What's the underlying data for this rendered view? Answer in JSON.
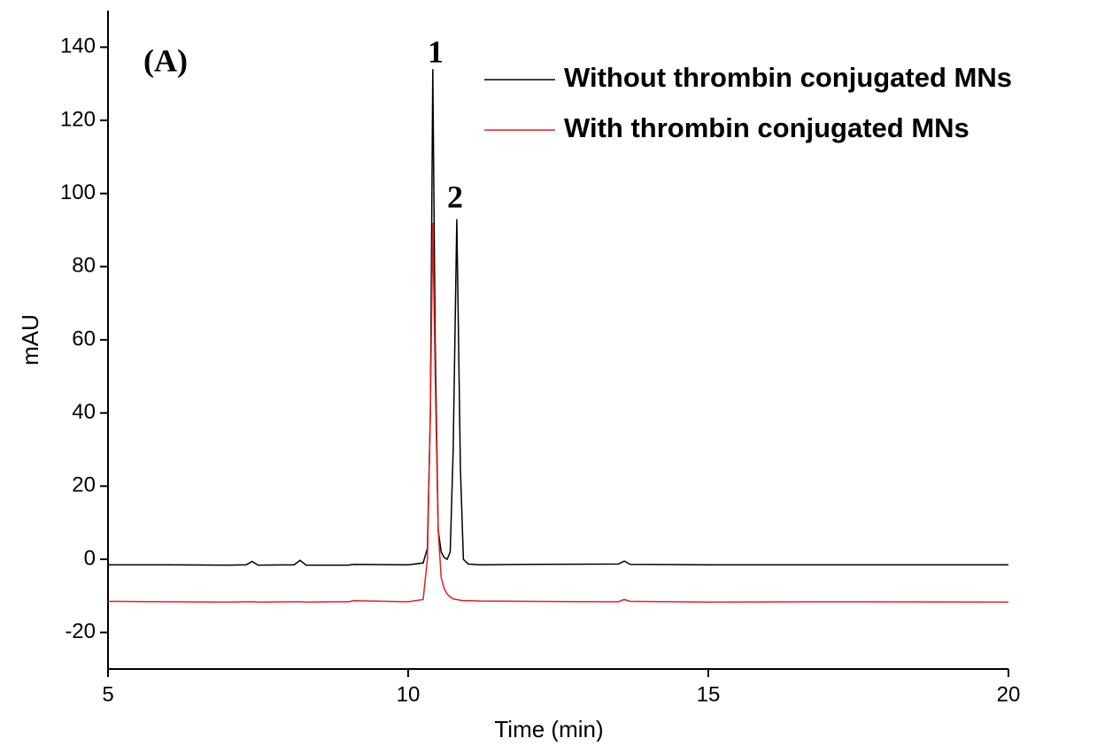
{
  "chart_data": {
    "type": "line",
    "panel_label": "(A)",
    "peak_labels": [
      "1",
      "2"
    ],
    "x_label": "Time (min)",
    "y_label": "mAU",
    "x": [
      5,
      6,
      7,
      7.3,
      7.4,
      7.5,
      8.1,
      8.2,
      8.3,
      9.0,
      9.1,
      10.0,
      10.25,
      10.32,
      10.37,
      10.41,
      10.45,
      10.5,
      10.55,
      10.6,
      10.65,
      10.7,
      10.75,
      10.81,
      10.87,
      10.92,
      11.0,
      11.2,
      12.0,
      13.5,
      13.6,
      13.7,
      15,
      17,
      20
    ],
    "series": [
      {
        "name": "Without thrombin conjugated MNs",
        "color": "#000000",
        "values": [
          -1.5,
          -1.5,
          -1.6,
          -1.5,
          -0.6,
          -1.6,
          -1.5,
          -0.3,
          -1.6,
          -1.6,
          -1.4,
          -1.5,
          -1,
          3,
          40,
          134,
          60,
          8,
          2,
          0.5,
          0,
          2,
          30,
          93,
          25,
          0,
          -1.3,
          -1.5,
          -1.4,
          -1.3,
          -0.5,
          -1.4,
          -1.5,
          -1.5,
          -1.5
        ]
      },
      {
        "name": "With thrombin conjugated MNs",
        "color": "#e02020",
        "values": [
          -11.5,
          -11.6,
          -11.7,
          -11.6,
          -11.6,
          -11.7,
          -11.6,
          -11.6,
          -11.7,
          -11.6,
          -11.3,
          -11.6,
          -11,
          0,
          40,
          92,
          50,
          8,
          -5,
          -8,
          -9.5,
          -10.3,
          -10.8,
          -11,
          -11.2,
          -11.3,
          -11.3,
          -11.4,
          -11.5,
          -11.6,
          -11,
          -11.5,
          -11.7,
          -11.6,
          -11.7
        ]
      }
    ],
    "xlim": [
      5,
      20
    ],
    "ylim": [
      -30,
      150
    ],
    "xticks": [
      5,
      10,
      15,
      20
    ],
    "yticks": [
      -20,
      0,
      20,
      40,
      60,
      80,
      100,
      120,
      140
    ],
    "legend": "upper right"
  }
}
